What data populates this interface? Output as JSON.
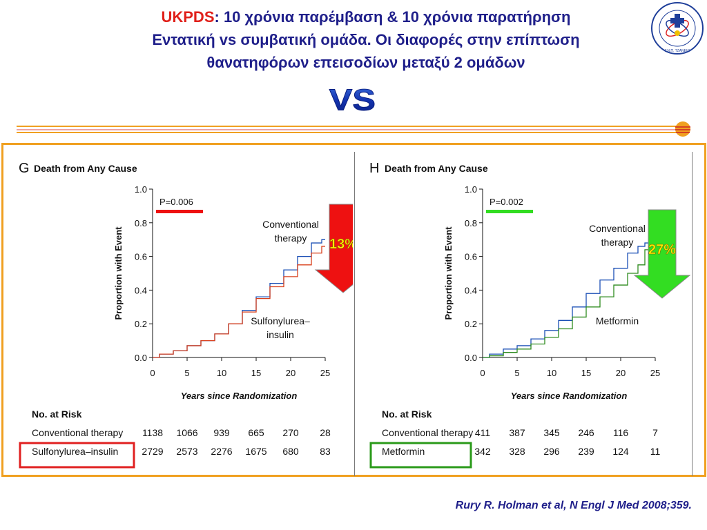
{
  "title": {
    "highlight": "UKPDS",
    "line1_rest": ": 10 χρόνια παρέμβαση & 10 χρόνια παρατήρηση",
    "line2": "Εντατική vs συμβατική ομάδα. Οι διαφορές στην επίπτωση",
    "line3": "θανατηφόρων επεισοδίων  μεταξύ 2 ομάδων"
  },
  "vs_label": "VS",
  "logo_text": "ΔΙΑΒΗΤΟΛΟΓΙΚΟ ΚΕΝΤΡΟ Γ.Ν.Π. ΤΖΑΝΕΙΟ",
  "citation": "Rury R. Holman et al, N Engl J Med 2008;359.",
  "colors": {
    "conventional": "#1a4fb5",
    "sulfonylurea": "#d9401c",
    "metformin": "#2e8b1e",
    "arrow_red": "#ee1111",
    "arrow_green": "#33dd22",
    "frame": "#f0a020"
  },
  "chart_data": [
    {
      "type": "line",
      "panel_letter": "G",
      "title": "Death from Any Cause",
      "xlabel": "Years since Randomization",
      "ylabel": "Proportion with Event",
      "xlim": [
        0,
        25
      ],
      "ylim": [
        0,
        1.0
      ],
      "x_ticks": [
        "0",
        "5",
        "10",
        "15",
        "20",
        "25"
      ],
      "y_ticks": [
        "0.0",
        "0.2",
        "0.4",
        "0.6",
        "0.8",
        "1.0"
      ],
      "p_value": "P=0.006",
      "arrow_label": "13%",
      "series": [
        {
          "name": "Conventional therapy",
          "label_lines": [
            "Conventional",
            "therapy"
          ],
          "x": [
            0,
            2,
            4,
            6,
            8,
            10,
            12,
            14,
            16,
            18,
            20,
            22,
            24,
            25
          ],
          "y": [
            0,
            0.02,
            0.04,
            0.07,
            0.1,
            0.14,
            0.2,
            0.28,
            0.36,
            0.44,
            0.52,
            0.6,
            0.68,
            0.7
          ]
        },
        {
          "name": "Sulfonylurea–insulin",
          "label_lines": [
            "Sulfonylurea–",
            "insulin"
          ],
          "x": [
            0,
            2,
            4,
            6,
            8,
            10,
            12,
            14,
            16,
            18,
            20,
            22,
            24,
            25
          ],
          "y": [
            0,
            0.02,
            0.04,
            0.07,
            0.1,
            0.14,
            0.2,
            0.27,
            0.35,
            0.42,
            0.48,
            0.55,
            0.62,
            0.66
          ]
        }
      ],
      "risk_table": {
        "header": "No. at Risk",
        "rows": [
          {
            "label": "Conventional therapy",
            "values": [
              "1138",
              "1066",
              "939",
              "665",
              "270",
              "28"
            ]
          },
          {
            "label": "Sulfonylurea–insulin",
            "values": [
              "2729",
              "2573",
              "2276",
              "1675",
              "680",
              "83"
            ]
          }
        ]
      }
    },
    {
      "type": "line",
      "panel_letter": "H",
      "title": "Death from Any Cause",
      "xlabel": "Years since Randomization",
      "ylabel": "Proportion with Event",
      "xlim": [
        0,
        25
      ],
      "ylim": [
        0,
        1.0
      ],
      "x_ticks": [
        "0",
        "5",
        "10",
        "15",
        "20",
        "25"
      ],
      "y_ticks": [
        "0.0",
        "0.2",
        "0.4",
        "0.6",
        "0.8",
        "1.0"
      ],
      "p_value": "P=0.002",
      "arrow_label": "27%",
      "series": [
        {
          "name": "Conventional therapy",
          "label_lines": [
            "Conventional",
            "therapy"
          ],
          "x": [
            0,
            2,
            4,
            6,
            8,
            10,
            12,
            14,
            16,
            18,
            20,
            22,
            23,
            24
          ],
          "y": [
            0,
            0.02,
            0.05,
            0.07,
            0.11,
            0.16,
            0.22,
            0.3,
            0.38,
            0.46,
            0.53,
            0.62,
            0.66,
            0.68
          ]
        },
        {
          "name": "Metformin",
          "label_lines": [
            "Metformin"
          ],
          "x": [
            0,
            2,
            4,
            6,
            8,
            10,
            12,
            14,
            16,
            18,
            20,
            22,
            23,
            24
          ],
          "y": [
            0,
            0.01,
            0.03,
            0.05,
            0.08,
            0.12,
            0.17,
            0.24,
            0.3,
            0.36,
            0.43,
            0.5,
            0.55,
            0.64
          ]
        }
      ],
      "risk_table": {
        "header": "No. at Risk",
        "rows": [
          {
            "label": "Conventional therapy",
            "values": [
              "411",
              "387",
              "345",
              "246",
              "116",
              "7"
            ]
          },
          {
            "label": "Metformin",
            "values": [
              "342",
              "328",
              "296",
              "239",
              "124",
              "11"
            ]
          }
        ]
      }
    }
  ]
}
